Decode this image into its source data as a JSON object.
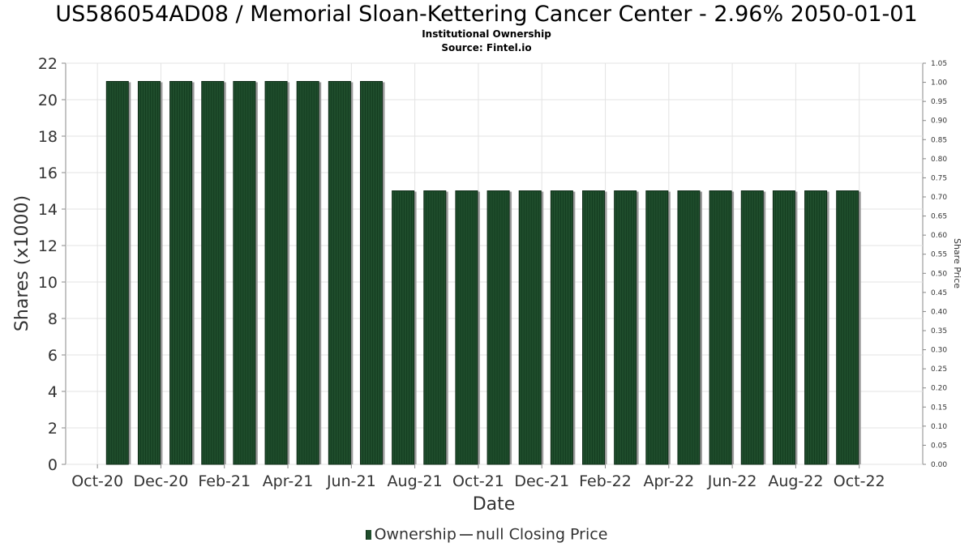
{
  "chart_data": {
    "type": "bar",
    "title": "US586054AD08 / Memorial Sloan-Kettering Cancer Center - 2.96% 2050-01-01",
    "subtitle": "Institutional Ownership",
    "source": "Source: Fintel.io",
    "xlabel": "Date",
    "ylabel": "Shares (x1000)",
    "y2label": "Share Price",
    "ylim": [
      0,
      22
    ],
    "y_ticks": [
      0,
      2,
      4,
      6,
      8,
      10,
      12,
      14,
      16,
      18,
      20,
      22
    ],
    "y2lim": [
      0,
      1.05
    ],
    "y2_ticks": [
      "0.00",
      "0.05",
      "0.10",
      "0.15",
      "0.20",
      "0.25",
      "0.30",
      "0.35",
      "0.40",
      "0.45",
      "0.50",
      "0.55",
      "0.60",
      "0.65",
      "0.70",
      "0.75",
      "0.80",
      "0.85",
      "0.90",
      "0.95",
      "1.00",
      "1.05"
    ],
    "x_ticks": [
      "Oct-20",
      "Dec-20",
      "Feb-21",
      "Apr-21",
      "Jun-21",
      "Aug-21",
      "Oct-21",
      "Dec-21",
      "Feb-22",
      "Apr-22",
      "Jun-22",
      "Aug-22",
      "Oct-22"
    ],
    "grid": true,
    "legend_position": "bottom-center",
    "legend": [
      "Ownership",
      "null Closing Price"
    ],
    "bar_color": "#1f4d2c",
    "series": [
      {
        "name": "Ownership",
        "x": [
          "2020-11-01",
          "2020-12-01",
          "2021-01-01",
          "2021-02-01",
          "2021-03-01",
          "2021-04-01",
          "2021-05-01",
          "2021-06-01",
          "2021-07-01",
          "2021-08-01",
          "2021-09-01",
          "2021-10-01",
          "2021-11-01",
          "2021-12-01",
          "2022-01-01",
          "2022-02-01",
          "2022-03-01",
          "2022-04-01",
          "2022-05-01",
          "2022-06-01",
          "2022-07-01",
          "2022-08-01",
          "2022-09-01",
          "2022-10-01"
        ],
        "values": [
          21,
          21,
          21,
          21,
          21,
          21,
          21,
          21,
          21,
          15,
          15,
          15,
          15,
          15,
          15,
          15,
          15,
          15,
          15,
          15,
          15,
          15,
          15,
          15
        ]
      }
    ]
  }
}
